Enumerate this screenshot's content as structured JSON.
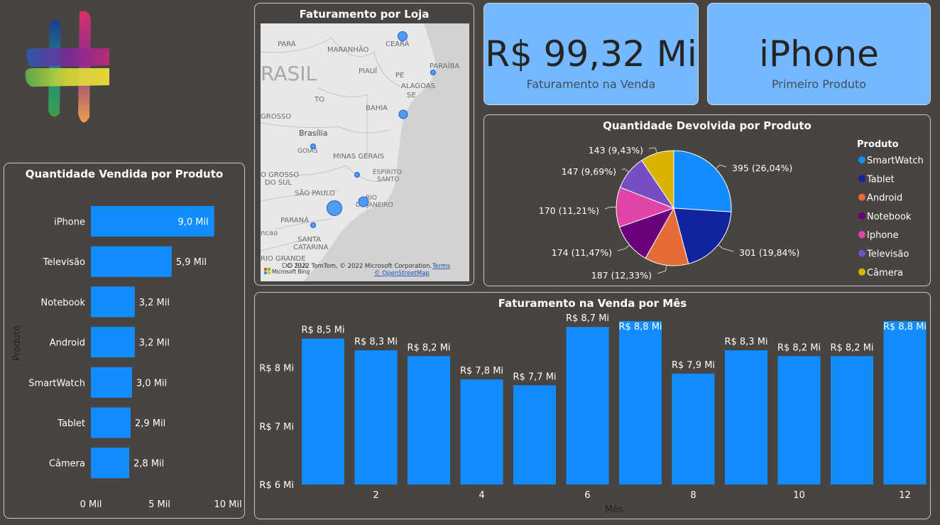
{
  "map": {
    "title": "Faturamento por Loja",
    "place_labels": [
      {
        "text": "PARÁ",
        "name": "para"
      },
      {
        "text": "MARANHÃO",
        "name": "maranhao"
      },
      {
        "text": "CEARÁ",
        "name": "ceara"
      },
      {
        "text": "PARAÍBA",
        "name": "paraiba"
      },
      {
        "text": "PIAUÍ",
        "name": "piaui"
      },
      {
        "text": "PE",
        "name": "pe"
      },
      {
        "text": "ALAGOAS",
        "name": "alagoas"
      },
      {
        "text": "SE",
        "name": "se"
      },
      {
        "text": "RASIL",
        "name": "brasil"
      },
      {
        "text": "TO",
        "name": "to"
      },
      {
        "text": "BAHIA",
        "name": "bahia"
      },
      {
        "text": "GROSSO",
        "name": "grosso"
      },
      {
        "text": "Brasília",
        "name": "brasilia"
      },
      {
        "text": "GOIÁS",
        "name": "goias"
      },
      {
        "text": "MINAS GERAIS",
        "name": "minas-gerais"
      },
      {
        "text": "ESPÍRITO",
        "name": "espirito"
      },
      {
        "text": "SANTO",
        "name": "santo"
      },
      {
        "text": "O GROSSO",
        "name": "o-grosso"
      },
      {
        "text": "DO SUL",
        "name": "do-sul"
      },
      {
        "text": "SÃO PAULO",
        "name": "sao-paulo"
      },
      {
        "text": "RIO",
        "name": "rio"
      },
      {
        "text": "DE JANEIRO",
        "name": "de-janeiro"
      },
      {
        "text": "PARANÁ",
        "name": "parana"
      },
      {
        "text": "ncao",
        "name": "ncao"
      },
      {
        "text": "SANTA",
        "name": "santa"
      },
      {
        "text": "CATARINA",
        "name": "catarina"
      },
      {
        "text": "RIO GRANDE",
        "name": "rio-grande"
      },
      {
        "text": "DO SUL",
        "name": "do-sul-2"
      }
    ],
    "attribution": "© 2022 TomTom, © 2022 Microsoft Corporation,",
    "terms": "Terms",
    "osm": "© OpenStreetMap",
    "bing": "Microsoft Bing"
  },
  "kpi_revenue": {
    "value": "R$ 99,32 Mi",
    "label": "Faturamento na Venda"
  },
  "kpi_product": {
    "value": "iPhone",
    "label": "Primeiro Produto"
  },
  "chart_data": [
    {
      "type": "bar",
      "orientation": "horizontal",
      "title": "Quantidade Vendida por Produto",
      "ylabel": "Produto",
      "categories": [
        "iPhone",
        "Televisão",
        "Notebook",
        "Android",
        "SmartWatch",
        "Tablet",
        "Câmera"
      ],
      "values": [
        9.0,
        5.9,
        3.2,
        3.2,
        3.0,
        2.9,
        2.8
      ],
      "data_labels": [
        "9,0 Mil",
        "5,9 Mil",
        "3,2 Mil",
        "3,2 Mil",
        "3,0 Mil",
        "2,9 Mil",
        "2,8 Mil"
      ],
      "xlim": [
        0,
        10
      ],
      "x_ticks": [
        0,
        5,
        10
      ],
      "x_tick_labels": [
        "0 Mil",
        "5 Mil",
        "10 Mil"
      ],
      "color": "#118dff"
    },
    {
      "type": "pie",
      "title": "Quantidade Devolvida por Produto",
      "legend_title": "Produto",
      "legend_position": "right",
      "categories": [
        "SmartWatch",
        "Tablet",
        "Android",
        "Notebook",
        "Iphone",
        "Televisão",
        "Câmera"
      ],
      "values": [
        395,
        301,
        187,
        174,
        170,
        147,
        143
      ],
      "data_labels": [
        "395 (26,04%)",
        "301 (19,84%)",
        "187 (12,33%)",
        "174 (11,47%)",
        "170 (11,21%)",
        "147 (9,69%)",
        "143 (9,43%)"
      ],
      "colors": [
        "#118dff",
        "#12239e",
        "#e66c37",
        "#6b007b",
        "#e044a7",
        "#744ec2",
        "#d9b300"
      ]
    },
    {
      "type": "bar",
      "title": "Faturamento na Venda por Mês",
      "xlabel": "Mês",
      "categories": [
        1,
        2,
        3,
        4,
        5,
        6,
        7,
        8,
        9,
        10,
        11,
        12
      ],
      "values": [
        8.5,
        8.3,
        8.2,
        7.8,
        7.7,
        8.7,
        8.8,
        7.9,
        8.3,
        8.2,
        8.2,
        8.8
      ],
      "data_labels": [
        "R$ 8,5 Mi",
        "R$ 8,3 Mi",
        "R$ 8,2 Mi",
        "R$ 7,8 Mi",
        "R$ 7,7 Mi",
        "R$ 8,7 Mi",
        "R$ 8,8 Mi",
        "R$ 7,9 Mi",
        "R$ 8,3 Mi",
        "R$ 8,2 Mi",
        "R$ 8,2 Mi",
        "R$ 8,8 Mi"
      ],
      "x_tick_labels": [
        "2",
        "4",
        "6",
        "8",
        "10",
        "12"
      ],
      "y_ticks": [
        6,
        7,
        8
      ],
      "y_tick_labels": [
        "R$ 6 Mi",
        "R$ 7 Mi",
        "R$ 8 Mi"
      ],
      "ylim": [
        6,
        8.8
      ],
      "color": "#118dff"
    }
  ]
}
